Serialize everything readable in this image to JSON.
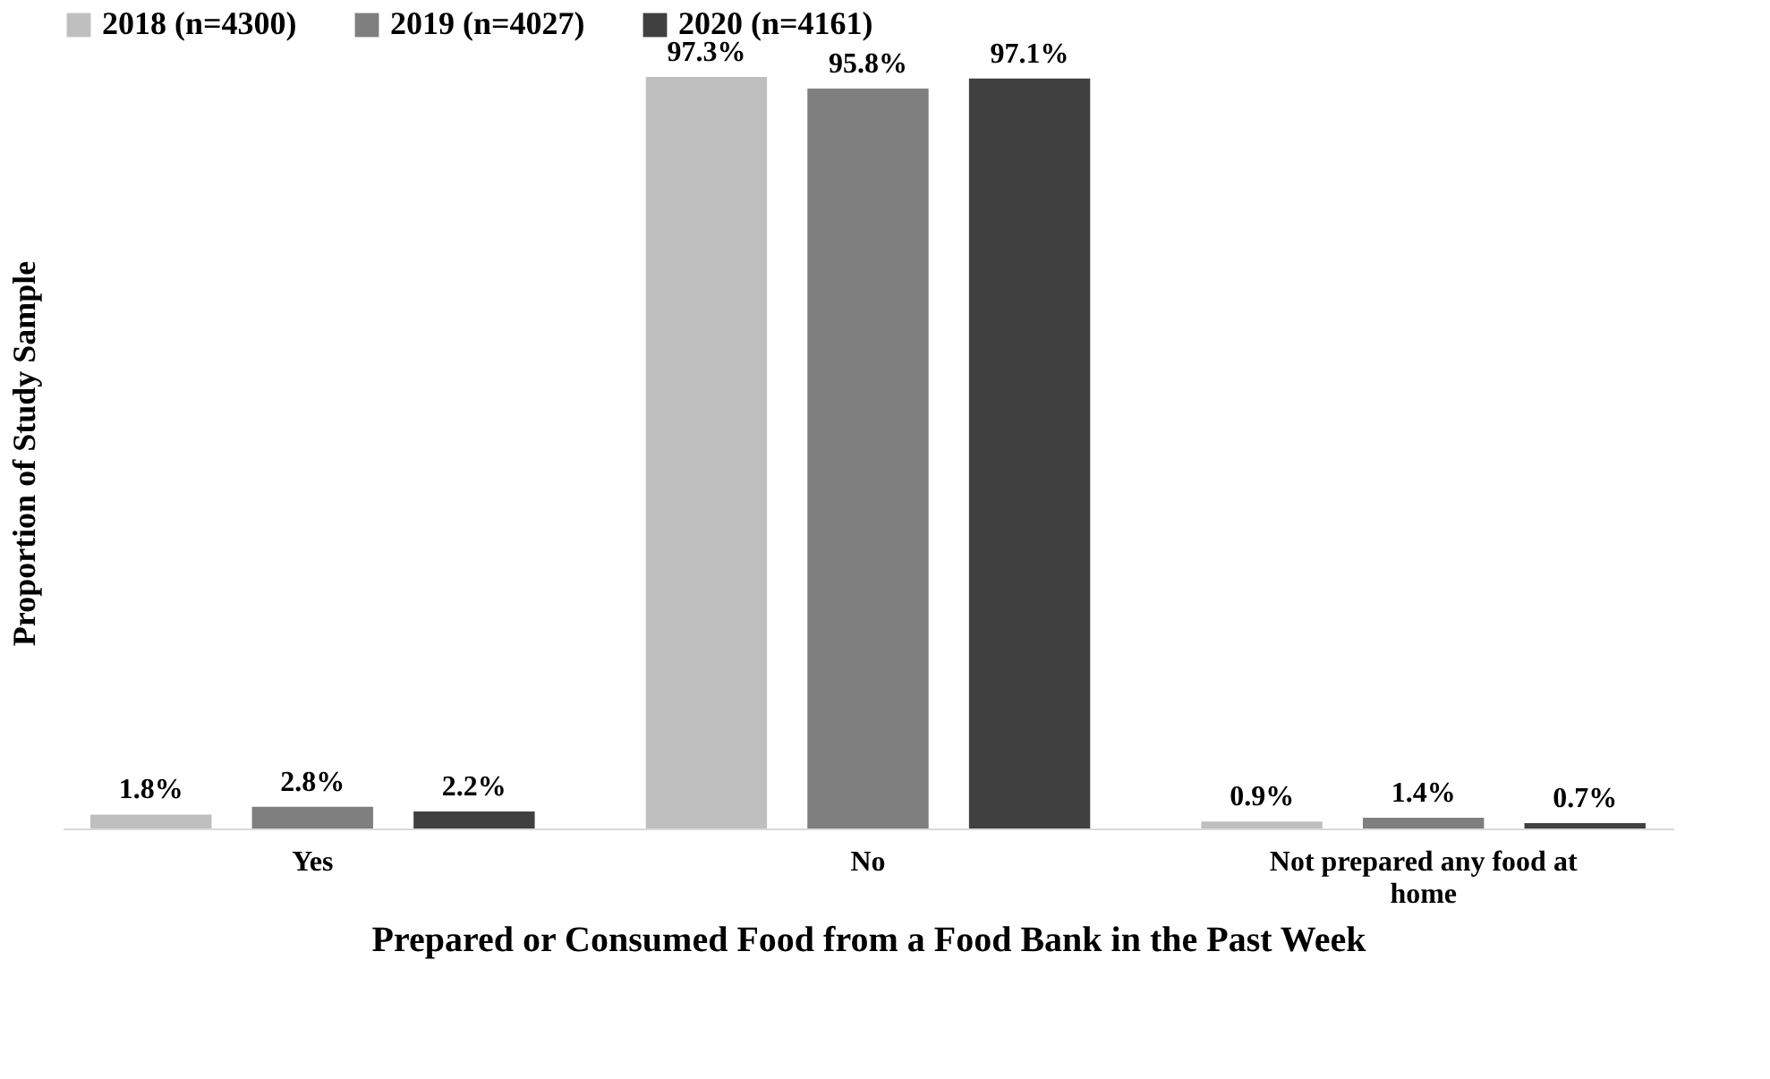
{
  "chart_data": {
    "type": "bar",
    "xlabel": "Prepared or Consumed Food from a Food Bank in the Past Week",
    "ylabel": "Proportion of Study Sample",
    "categories": [
      "Yes",
      "No",
      "Not prepared any food at home"
    ],
    "series": [
      {
        "name": "2018 (n=4300)",
        "color": "#bfbfbf",
        "values": [
          1.8,
          97.3,
          0.9
        ],
        "value_labels": [
          "1.8%",
          "97.3%",
          "0.9%"
        ]
      },
      {
        "name": "2019 (n=4027)",
        "color": "#7f7f7f",
        "values": [
          2.8,
          95.8,
          1.4
        ],
        "value_labels": [
          "2.8%",
          "95.8%",
          "1.4%"
        ]
      },
      {
        "name": "2020 (n=4161)",
        "color": "#404040",
        "values": [
          2.2,
          97.1,
          0.7
        ],
        "value_labels": [
          "2.2%",
          "97.1%",
          "0.7%"
        ]
      }
    ],
    "legend": "top",
    "grid": false
  }
}
